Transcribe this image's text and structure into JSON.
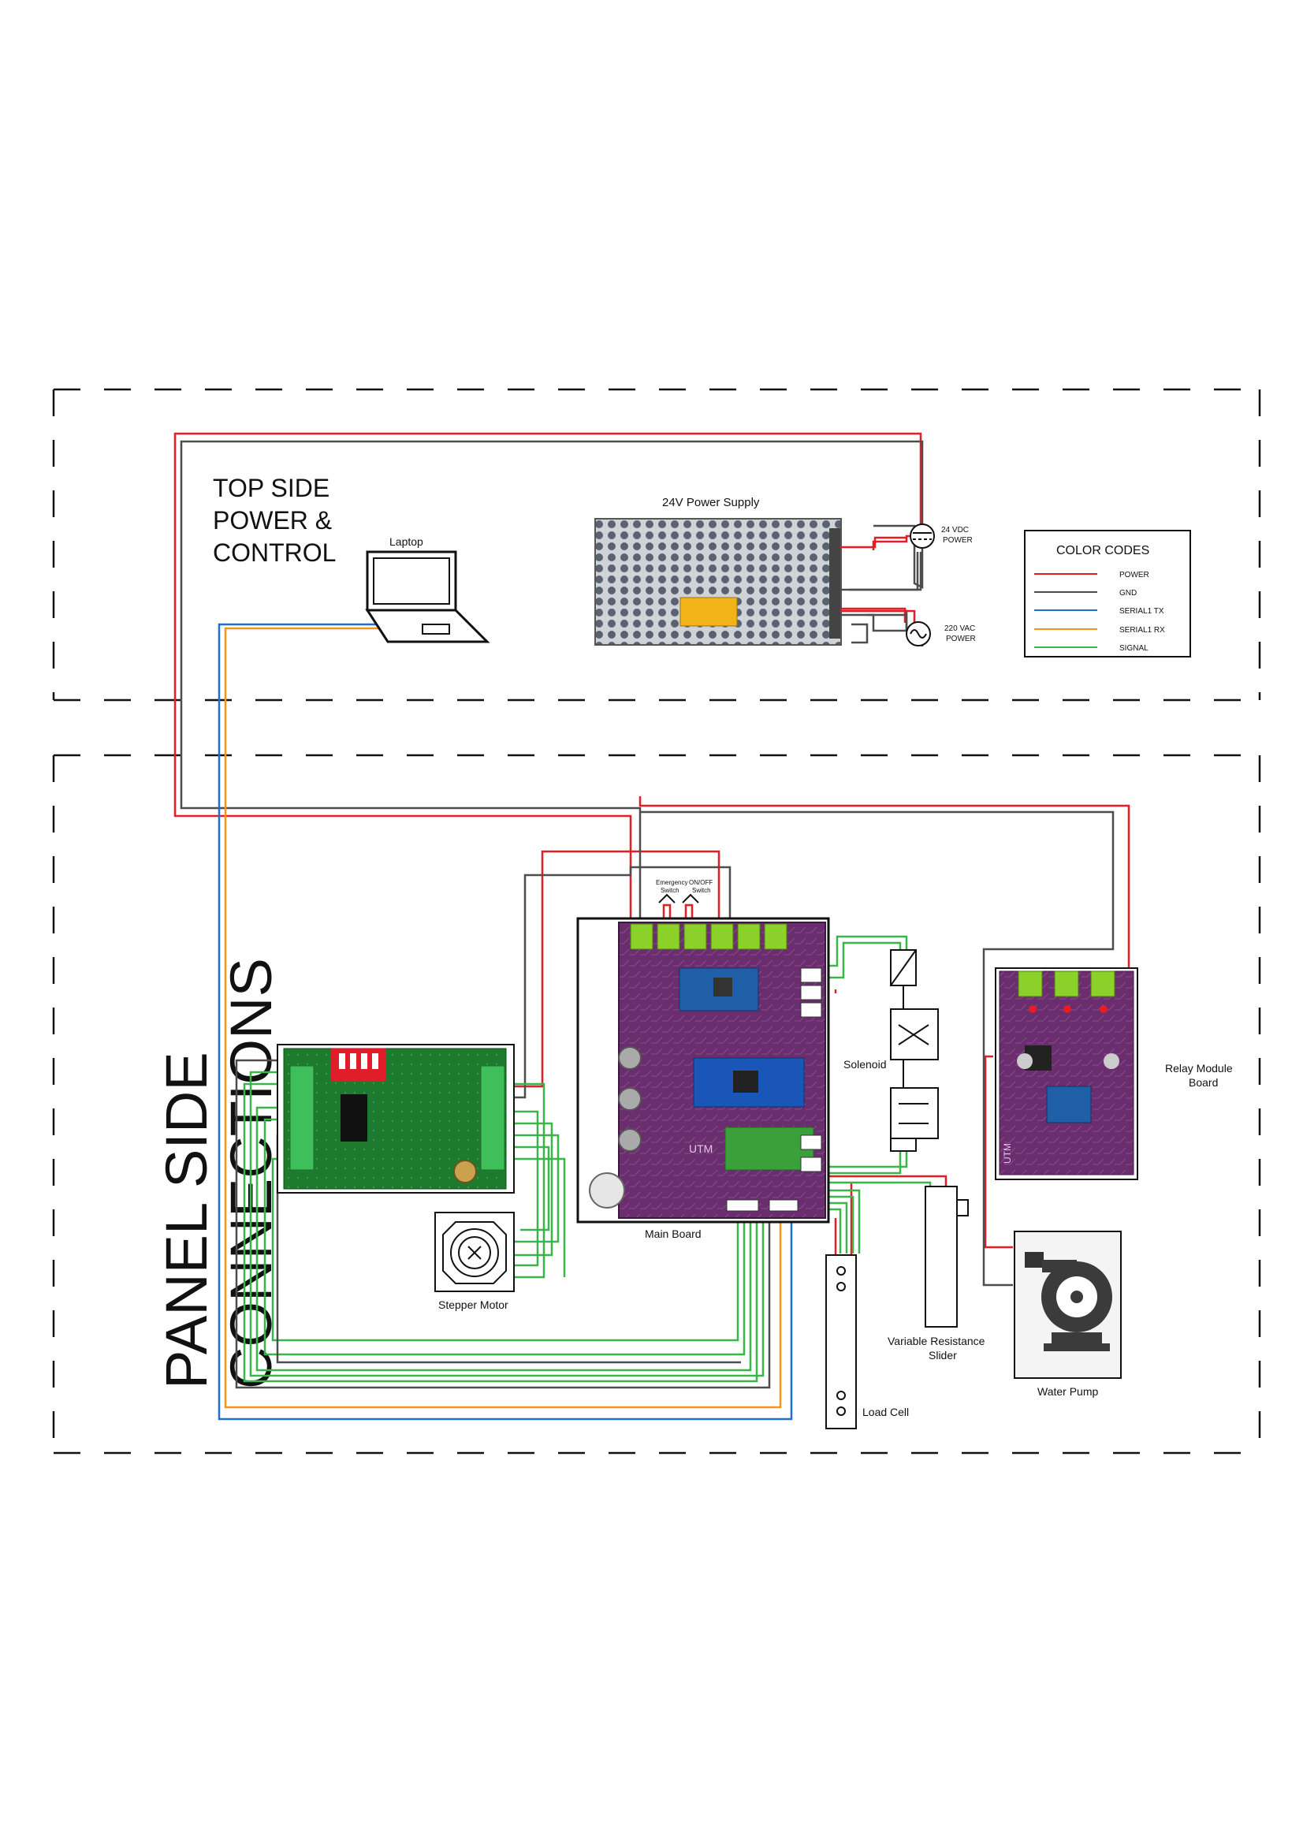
{
  "sections": {
    "top": {
      "line1": "TOP SIDE",
      "line2": "POWER &",
      "line3": "CONTROL"
    },
    "panel": {
      "line1": "PANEL SIDE",
      "line2": "CONNECTIONS"
    }
  },
  "components": {
    "laptop": "Laptop",
    "power_supply": "24V Power Supply",
    "dc_power": {
      "line1": "24  VDC",
      "line2": "POWER"
    },
    "ac_power": {
      "line1": "220  VAC",
      "line2": "POWER"
    },
    "main_board": "Main Board",
    "emergency_switch": {
      "line1": "Emergency",
      "line2": "Switch"
    },
    "onoff_switch": {
      "line1": "ON/OFF",
      "line2": "Switch"
    },
    "solenoid": "Solenoid",
    "relay_board": {
      "line1": "Relay Module",
      "line2": "Board"
    },
    "stepper_motor": "Stepper Motor",
    "slider": {
      "line1": "Variable Resistance",
      "line2": "Slider"
    },
    "water_pump": "Water Pump",
    "load_cell": "Load Cell",
    "utm_mark": "UTM"
  },
  "legend": {
    "title": "COLOR CODES",
    "items": [
      {
        "label": "POWER",
        "color": "#e31e24"
      },
      {
        "label": "GND",
        "color": "#4d4d4d"
      },
      {
        "label": "SERIAL1 TX",
        "color": "#1f6fd1"
      },
      {
        "label": "SERIAL1 RX",
        "color": "#f7941d"
      },
      {
        "label": "SIGNAL",
        "color": "#39b54a"
      }
    ]
  }
}
